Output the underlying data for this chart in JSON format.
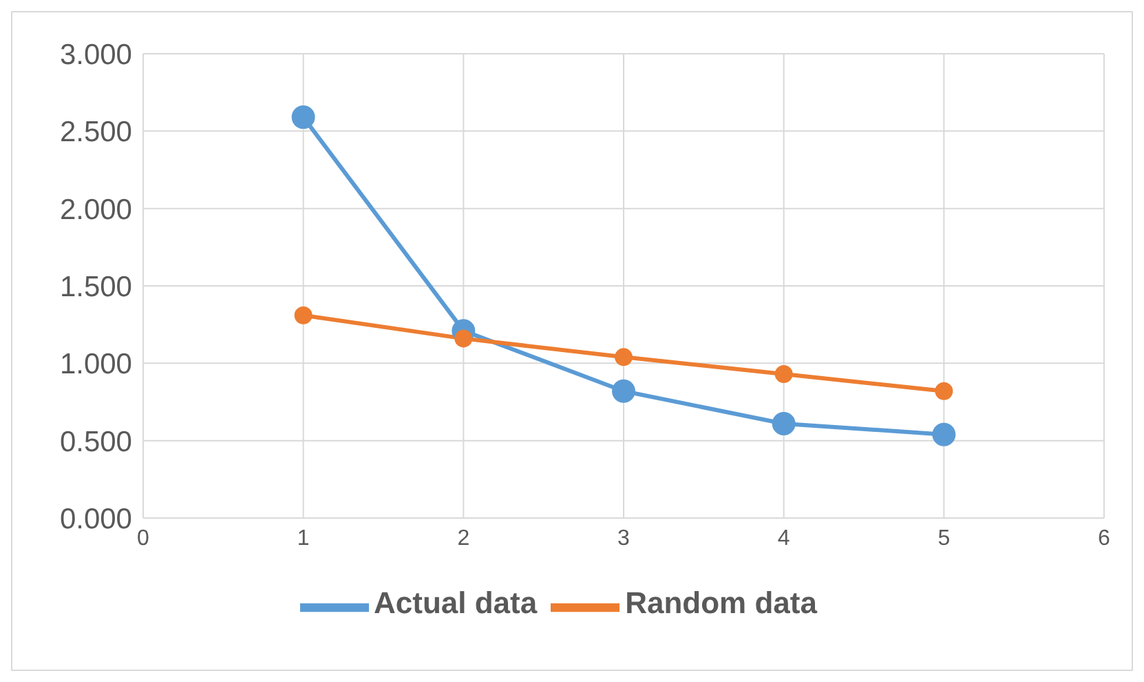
{
  "chart_data": {
    "type": "line",
    "x": [
      1,
      2,
      3,
      4,
      5
    ],
    "series": [
      {
        "name": "Actual data",
        "color": "#5b9bd5",
        "values": [
          2.59,
          1.21,
          0.82,
          0.61,
          0.54
        ]
      },
      {
        "name": "Random data",
        "color": "#ed7d31",
        "values": [
          1.31,
          1.16,
          1.04,
          0.93,
          0.82
        ]
      }
    ],
    "xlim": [
      0,
      6
    ],
    "xticks": [
      0,
      1,
      2,
      3,
      4,
      5,
      6
    ],
    "ylim": [
      0,
      3
    ],
    "yticks": [
      {
        "value": 0,
        "label": "0.000"
      },
      {
        "value": 0.5,
        "label": "0.500"
      },
      {
        "value": 1,
        "label": "1.000"
      },
      {
        "value": 1.5,
        "label": "1.500"
      },
      {
        "value": 2,
        "label": "2.000"
      },
      {
        "value": 2.5,
        "label": "2.500"
      },
      {
        "value": 3,
        "label": "3.000"
      }
    ],
    "grid": true,
    "legend": "bottom",
    "marker": "circle",
    "line_style": "solid"
  }
}
